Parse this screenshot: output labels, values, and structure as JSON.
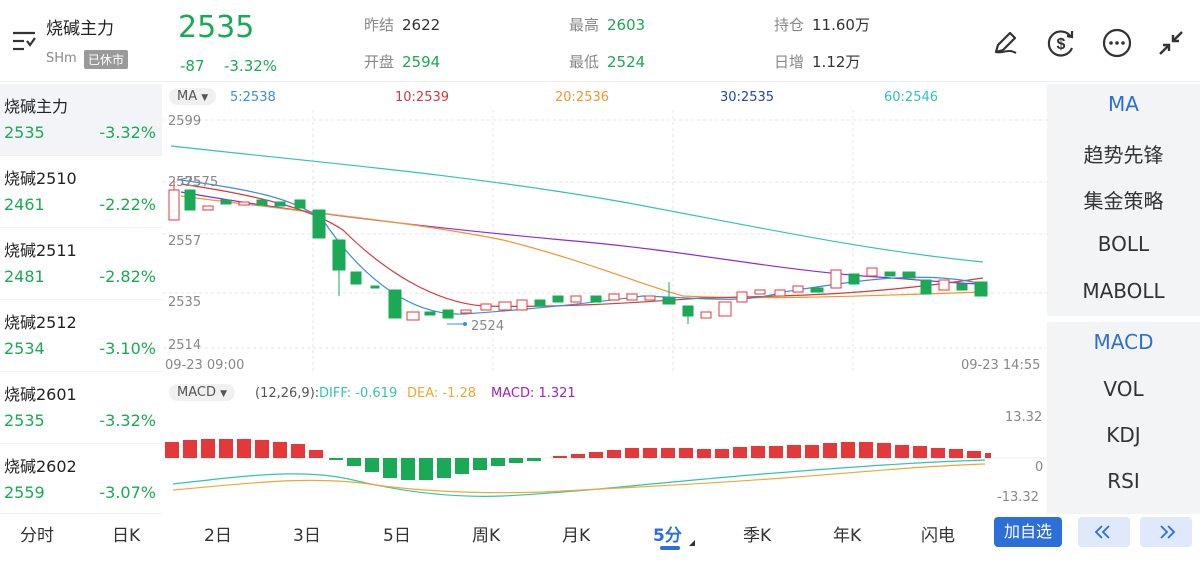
{
  "header": {
    "title": "烧碱主力",
    "exchange": "SHm",
    "status": "已休市",
    "last_price": "2535",
    "change": "-87",
    "change_pct": "-3.32%",
    "stats": [
      {
        "label": "昨结",
        "value": "2622",
        "color": "#333333"
      },
      {
        "label": "开盘",
        "value": "2594",
        "color": "#1aaa55"
      },
      {
        "label": "最高",
        "value": "2603",
        "color": "#1aaa55"
      },
      {
        "label": "最低",
        "value": "2524",
        "color": "#1aaa55"
      },
      {
        "label": "持仓",
        "value": "11.60万",
        "color": "#333333"
      },
      {
        "label": "日增",
        "value": "1.12万",
        "color": "#333333"
      }
    ],
    "icons": [
      "edit-pen-icon",
      "dollar-refresh-icon",
      "more-dots-icon",
      "collapse-arrows-icon"
    ]
  },
  "watchlist": [
    {
      "name": "烧碱主力",
      "price": "2535",
      "pct": "-3.32%"
    },
    {
      "name": "烧碱2510",
      "price": "2461",
      "pct": "-2.22%"
    },
    {
      "name": "烧碱2511",
      "price": "2481",
      "pct": "-2.82%"
    },
    {
      "name": "烧碱2512",
      "price": "2534",
      "pct": "-3.10%"
    },
    {
      "name": "烧碱2601",
      "price": "2535",
      "pct": "-3.32%"
    },
    {
      "name": "烧碱2602",
      "price": "2559",
      "pct": "-3.07%"
    }
  ],
  "kline": {
    "chip_label": "MA",
    "ma_legend": [
      {
        "text": "5:2538",
        "color": "#3c8fd8"
      },
      {
        "text": "10:2539",
        "color": "#d33a3a"
      },
      {
        "text": "20:2536",
        "color": "#f0962e"
      },
      {
        "text": "30:2535",
        "color": "#2346a8"
      },
      {
        "text": "60:2546",
        "color": "#2ec6b0"
      }
    ],
    "y_labels": [
      "2599",
      "2557",
      "2535",
      "2514"
    ],
    "high_marker": "2575",
    "high_marker_dup": "2575",
    "low_marker": "2524",
    "time_start": "09-23 09:00",
    "time_end": "09-23 14:55"
  },
  "macd": {
    "chip_label": "MACD",
    "params": "(12,26,9):",
    "diff": "DIFF: -0.619",
    "dea": "DEA: -1.28",
    "macd": "MACD: 1.321",
    "y_labels": [
      "13.32",
      "0",
      "-13.32"
    ],
    "colors": {
      "diff": "#2ec6b0",
      "dea": "#f0a830",
      "macd": "#a020c0"
    }
  },
  "indicators_main": [
    "MA",
    "趋势先锋",
    "集金策略",
    "BOLL",
    "MABOLL"
  ],
  "indicators_sub": [
    "MACD",
    "VOL",
    "KDJ",
    "RSI"
  ],
  "bottom_tabs": [
    "分时",
    "日K",
    "2日",
    "3日",
    "5日",
    "周K",
    "月K",
    "5分",
    "季K",
    "年K",
    "闪电"
  ],
  "selected_tab": "5分",
  "add_watch_label": "加自选",
  "colors": {
    "up": "#e5383b",
    "down": "#1aaa55",
    "accent": "#2d6fd8"
  }
}
